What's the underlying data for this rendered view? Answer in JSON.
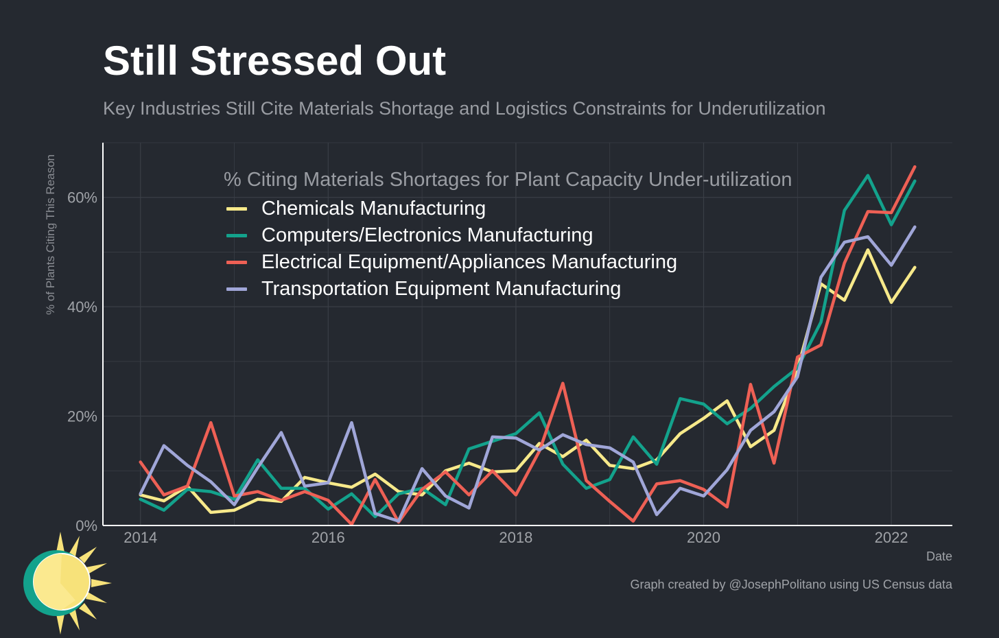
{
  "header": {
    "title": "Still Stressed Out",
    "subtitle": "Key Industries Still Cite Materials Shortage and Logistics Constraints for Underutilization"
  },
  "footer": {
    "caption": "Graph created by @JosephPolitano using US Census data"
  },
  "logo": {
    "icon": "sun-logo-icon"
  },
  "colors": {
    "background": "#252930",
    "grid": "#3a3e46",
    "axis": "#ffffff",
    "tick_text": "#a0a3a8"
  },
  "chart_data": {
    "type": "line",
    "legend_title": "% Citing Materials Shortages for Plant Capacity Under-utilization",
    "legend_position": "top-center",
    "xlabel": "Date",
    "ylabel": "% of Plants Citing This Reason",
    "xlim": [
      2013.6,
      2022.65
    ],
    "ylim": [
      0,
      70
    ],
    "x_ticks": [
      2014,
      2016,
      2018,
      2020,
      2022
    ],
    "x_tick_labels": [
      "2014",
      "2016",
      "2018",
      "2020",
      "2022"
    ],
    "y_ticks": [
      0,
      20,
      40,
      60
    ],
    "y_tick_labels": [
      "0%",
      "20%",
      "40%",
      "60%"
    ],
    "grid": true,
    "x": [
      2014.0,
      2014.25,
      2014.5,
      2014.75,
      2015.0,
      2015.25,
      2015.5,
      2015.75,
      2016.0,
      2016.25,
      2016.5,
      2016.75,
      2017.0,
      2017.25,
      2017.5,
      2017.75,
      2018.0,
      2018.25,
      2018.5,
      2018.75,
      2019.0,
      2019.25,
      2019.5,
      2019.75,
      2020.0,
      2020.25,
      2020.5,
      2020.75,
      2021.0,
      2021.25,
      2021.5,
      2021.75,
      2022.0,
      2022.25
    ],
    "series": [
      {
        "name": "Chemicals Manufacturing",
        "color": "#f7e98a",
        "values": [
          5.6,
          4.5,
          7.2,
          2.4,
          2.8,
          4.8,
          4.4,
          8.8,
          7.8,
          7.0,
          9.4,
          6.2,
          5.6,
          10.0,
          11.4,
          9.8,
          10.0,
          15.0,
          12.6,
          15.6,
          11.0,
          10.4,
          12.0,
          16.8,
          19.6,
          22.8,
          14.4,
          17.4,
          28.6,
          44.2,
          41.2,
          50.4,
          40.8,
          47.2
        ]
      },
      {
        "name": "Computers/Electronics Manufacturing",
        "color": "#13a28c",
        "values": [
          4.8,
          2.8,
          6.6,
          6.2,
          4.8,
          12.0,
          6.8,
          6.8,
          3.0,
          5.8,
          1.6,
          5.8,
          6.8,
          3.8,
          14.0,
          15.4,
          16.8,
          20.6,
          11.2,
          6.8,
          8.4,
          16.2,
          11.2,
          23.2,
          22.2,
          18.6,
          21.4,
          25.4,
          28.8,
          37.2,
          57.6,
          64.0,
          55.0,
          63.0
        ]
      },
      {
        "name": "Electrical Equipment/Appliances Manufacturing",
        "color": "#ee6055",
        "values": [
          11.6,
          5.6,
          7.2,
          18.8,
          5.4,
          6.2,
          4.6,
          6.2,
          4.6,
          0.2,
          8.4,
          0.6,
          6.6,
          9.8,
          5.6,
          10.0,
          5.6,
          13.6,
          26.0,
          8.2,
          4.4,
          0.8,
          7.6,
          8.2,
          6.6,
          3.4,
          25.8,
          11.4,
          30.8,
          33.0,
          48.0,
          57.4,
          57.2,
          65.6
        ]
      },
      {
        "name": "Transportation Equipment Manufacturing",
        "color": "#a0a6d8",
        "values": [
          5.8,
          14.6,
          11.0,
          8.0,
          3.8,
          10.6,
          17.0,
          7.2,
          7.8,
          18.8,
          2.2,
          0.8,
          10.4,
          5.4,
          3.2,
          16.2,
          16.0,
          13.8,
          16.6,
          14.8,
          14.2,
          11.6,
          2.0,
          6.8,
          5.4,
          10.2,
          17.4,
          20.8,
          27.2,
          45.4,
          51.8,
          52.8,
          47.6,
          54.6
        ]
      }
    ]
  }
}
